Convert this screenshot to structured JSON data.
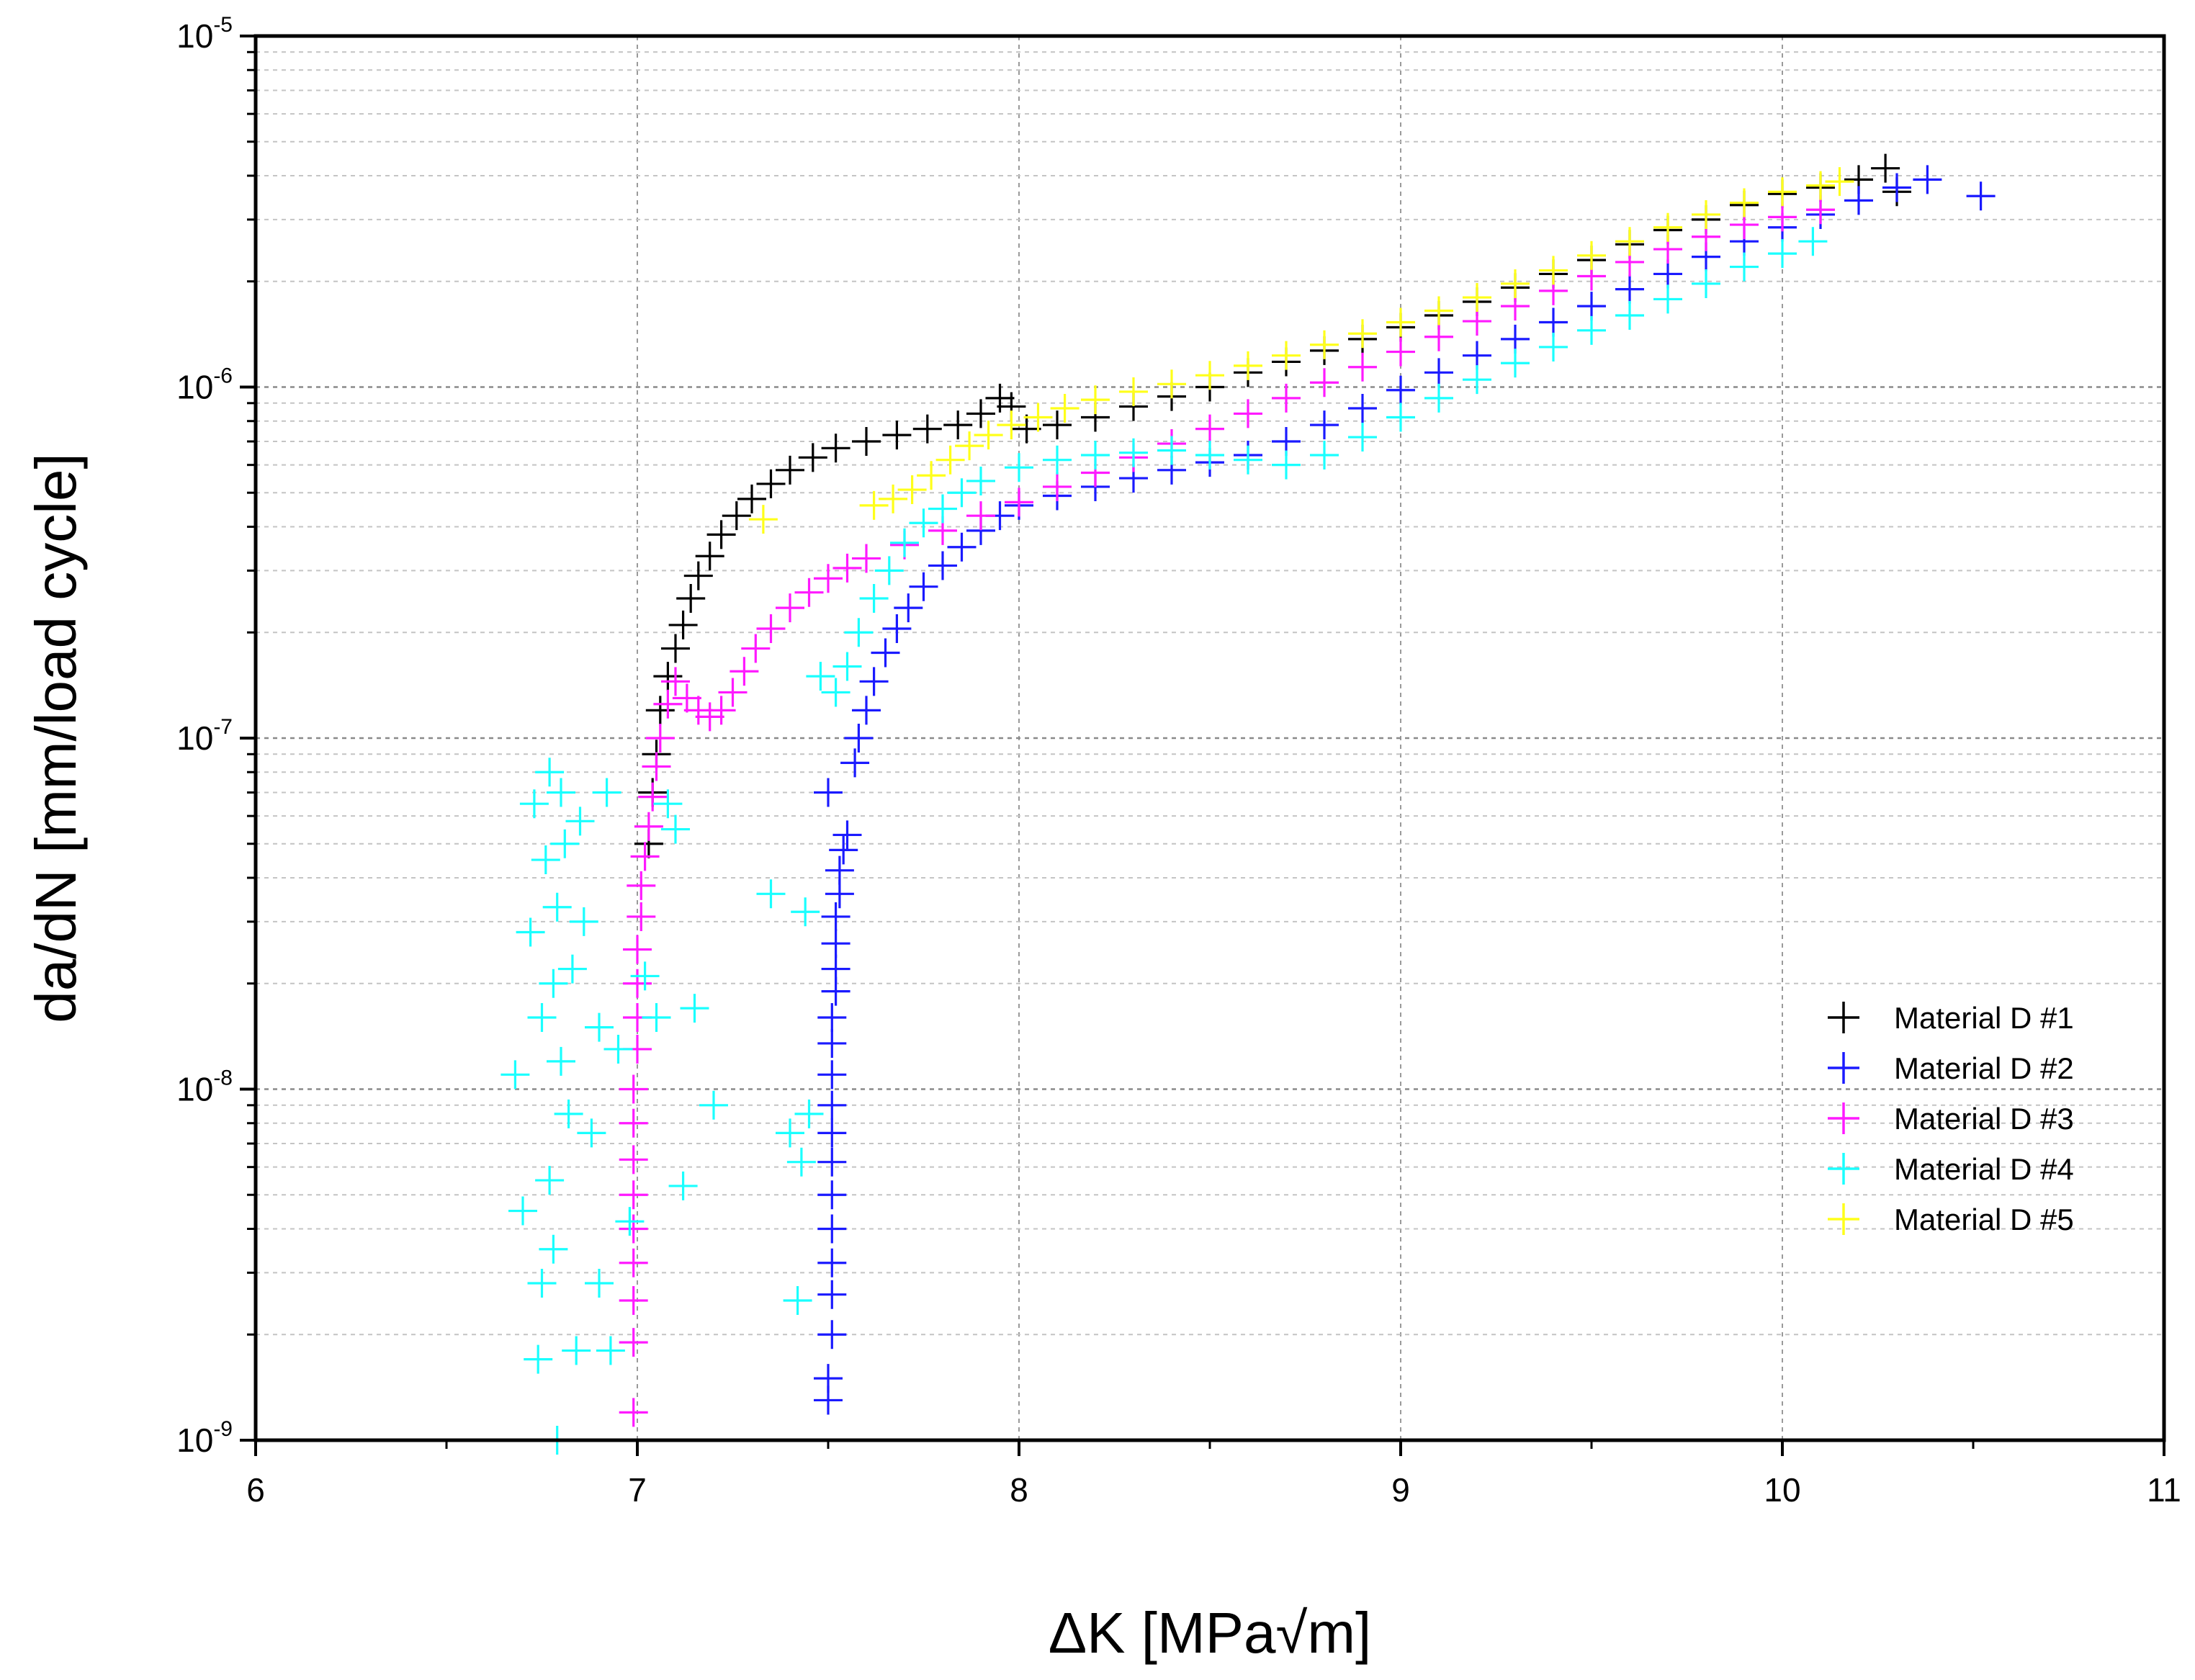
{
  "chart_data": {
    "type": "scatter",
    "marker": "plus",
    "title": "",
    "xlabel": "ΔK [MPa√m]",
    "ylabel": "da/dN [mm/load cycle]",
    "xscale": "linear",
    "yscale": "log",
    "xlim": [
      6,
      11
    ],
    "ylim": [
      1e-09,
      1e-05
    ],
    "x_ticks": [
      6,
      7,
      8,
      9,
      10,
      11
    ],
    "x_tick_labels": [
      "6",
      "7",
      "8",
      "9",
      "10",
      "11"
    ],
    "y_ticks": [
      1e-09,
      1e-08,
      1e-07,
      1e-06,
      1e-05
    ],
    "y_tick_labels": [
      {
        "base": "10",
        "exp": "-9"
      },
      {
        "base": "10",
        "exp": "-8"
      },
      {
        "base": "10",
        "exp": "-7"
      },
      {
        "base": "10",
        "exp": "-6"
      },
      {
        "base": "10",
        "exp": "-5"
      }
    ],
    "grid": true,
    "legend_position": "lower-right",
    "series": [
      {
        "name": "Material D #1",
        "color": "#000000",
        "points": [
          [
            7.03,
            5e-08
          ],
          [
            7.04,
            7e-08
          ],
          [
            7.05,
            9e-08
          ],
          [
            7.06,
            1.2e-07
          ],
          [
            7.08,
            1.5e-07
          ],
          [
            7.1,
            1.8e-07
          ],
          [
            7.12,
            2.1e-07
          ],
          [
            7.14,
            2.5e-07
          ],
          [
            7.16,
            2.9e-07
          ],
          [
            7.19,
            3.3e-07
          ],
          [
            7.22,
            3.8e-07
          ],
          [
            7.26,
            4.3e-07
          ],
          [
            7.3,
            4.8e-07
          ],
          [
            7.35,
            5.3e-07
          ],
          [
            7.4,
            5.8e-07
          ],
          [
            7.46,
            6.3e-07
          ],
          [
            7.52,
            6.7e-07
          ],
          [
            7.6,
            7e-07
          ],
          [
            7.68,
            7.3e-07
          ],
          [
            7.76,
            7.6e-07
          ],
          [
            7.84,
            7.8e-07
          ],
          [
            7.9,
            8.4e-07
          ],
          [
            7.95,
            9.3e-07
          ],
          [
            7.98,
            8.8e-07
          ],
          [
            8.02,
            7.6e-07
          ],
          [
            8.1,
            7.8e-07
          ],
          [
            8.2,
            8.2e-07
          ],
          [
            8.3,
            8.8e-07
          ],
          [
            8.4,
            9.4e-07
          ],
          [
            8.5,
            1e-06
          ],
          [
            8.6,
            1.1e-06
          ],
          [
            8.7,
            1.18e-06
          ],
          [
            8.8,
            1.27e-06
          ],
          [
            8.9,
            1.37e-06
          ],
          [
            9.0,
            1.48e-06
          ],
          [
            9.1,
            1.6e-06
          ],
          [
            9.2,
            1.75e-06
          ],
          [
            9.3,
            1.92e-06
          ],
          [
            9.4,
            2.1e-06
          ],
          [
            9.5,
            2.3e-06
          ],
          [
            9.6,
            2.55e-06
          ],
          [
            9.7,
            2.8e-06
          ],
          [
            9.8,
            3e-06
          ],
          [
            9.9,
            3.3e-06
          ],
          [
            10.0,
            3.55e-06
          ],
          [
            10.1,
            3.7e-06
          ],
          [
            10.2,
            3.9e-06
          ],
          [
            10.27,
            4.2e-06
          ],
          [
            10.3,
            3.6e-06
          ]
        ]
      },
      {
        "name": "Material D #2",
        "color": "#1a1aff",
        "points": [
          [
            7.5,
            1.3e-09
          ],
          [
            7.5,
            1.5e-09
          ],
          [
            7.51,
            2e-09
          ],
          [
            7.51,
            2.6e-09
          ],
          [
            7.51,
            3.2e-09
          ],
          [
            7.51,
            4e-09
          ],
          [
            7.51,
            5e-09
          ],
          [
            7.51,
            6.2e-09
          ],
          [
            7.51,
            7.5e-09
          ],
          [
            7.51,
            9e-09
          ],
          [
            7.51,
            1.1e-08
          ],
          [
            7.51,
            1.35e-08
          ],
          [
            7.51,
            1.6e-08
          ],
          [
            7.52,
            1.9e-08
          ],
          [
            7.52,
            2.2e-08
          ],
          [
            7.52,
            2.6e-08
          ],
          [
            7.52,
            3.1e-08
          ],
          [
            7.53,
            3.6e-08
          ],
          [
            7.53,
            4.2e-08
          ],
          [
            7.54,
            4.8e-08
          ],
          [
            7.55,
            5.3e-08
          ],
          [
            7.5,
            7e-08
          ],
          [
            7.57,
            8.5e-08
          ],
          [
            7.58,
            1e-07
          ],
          [
            7.6,
            1.2e-07
          ],
          [
            7.62,
            1.45e-07
          ],
          [
            7.65,
            1.75e-07
          ],
          [
            7.68,
            2.05e-07
          ],
          [
            7.71,
            2.35e-07
          ],
          [
            7.75,
            2.7e-07
          ],
          [
            7.8,
            3.1e-07
          ],
          [
            7.85,
            3.5e-07
          ],
          [
            7.9,
            3.9e-07
          ],
          [
            7.95,
            4.3e-07
          ],
          [
            8.0,
            4.6e-07
          ],
          [
            8.1,
            4.9e-07
          ],
          [
            8.2,
            5.2e-07
          ],
          [
            8.3,
            5.5e-07
          ],
          [
            8.4,
            5.8e-07
          ],
          [
            8.5,
            6.1e-07
          ],
          [
            8.6,
            6.4e-07
          ],
          [
            8.7,
            7e-07
          ],
          [
            8.8,
            7.8e-07
          ],
          [
            8.9,
            8.7e-07
          ],
          [
            9.0,
            9.8e-07
          ],
          [
            9.1,
            1.1e-06
          ],
          [
            9.2,
            1.23e-06
          ],
          [
            9.3,
            1.37e-06
          ],
          [
            9.4,
            1.53e-06
          ],
          [
            9.5,
            1.7e-06
          ],
          [
            9.6,
            1.9e-06
          ],
          [
            9.7,
            2.1e-06
          ],
          [
            9.8,
            2.35e-06
          ],
          [
            9.9,
            2.6e-06
          ],
          [
            10.0,
            2.85e-06
          ],
          [
            10.1,
            3.1e-06
          ],
          [
            10.2,
            3.4e-06
          ],
          [
            10.3,
            3.7e-06
          ],
          [
            10.38,
            3.9e-06
          ],
          [
            10.52,
            3.5e-06
          ]
        ]
      },
      {
        "name": "Material D #3",
        "color": "#ff1aff",
        "points": [
          [
            6.99,
            1.2e-09
          ],
          [
            6.99,
            1.9e-09
          ],
          [
            6.99,
            2.5e-09
          ],
          [
            6.99,
            3.2e-09
          ],
          [
            6.99,
            4e-09
          ],
          [
            6.99,
            5e-09
          ],
          [
            6.99,
            6.3e-09
          ],
          [
            6.99,
            8e-09
          ],
          [
            6.99,
            1e-08
          ],
          [
            7.0,
            1.3e-08
          ],
          [
            7.0,
            1.6e-08
          ],
          [
            7.0,
            2e-08
          ],
          [
            7.0,
            2.5e-08
          ],
          [
            7.01,
            3.1e-08
          ],
          [
            7.01,
            3.8e-08
          ],
          [
            7.02,
            4.6e-08
          ],
          [
            7.03,
            5.6e-08
          ],
          [
            7.04,
            6.8e-08
          ],
          [
            7.05,
            8.3e-08
          ],
          [
            7.06,
            1e-07
          ],
          [
            7.08,
            1.25e-07
          ],
          [
            7.1,
            1.45e-07
          ],
          [
            7.13,
            1.3e-07
          ],
          [
            7.16,
            1.2e-07
          ],
          [
            7.19,
            1.15e-07
          ],
          [
            7.22,
            1.2e-07
          ],
          [
            7.25,
            1.35e-07
          ],
          [
            7.28,
            1.55e-07
          ],
          [
            7.31,
            1.8e-07
          ],
          [
            7.35,
            2.05e-07
          ],
          [
            7.4,
            2.35e-07
          ],
          [
            7.45,
            2.6e-07
          ],
          [
            7.5,
            2.85e-07
          ],
          [
            7.55,
            3.05e-07
          ],
          [
            7.6,
            3.25e-07
          ],
          [
            7.7,
            3.55e-07
          ],
          [
            7.8,
            3.9e-07
          ],
          [
            7.9,
            4.3e-07
          ],
          [
            8.0,
            4.7e-07
          ],
          [
            8.1,
            5.2e-07
          ],
          [
            8.2,
            5.7e-07
          ],
          [
            8.3,
            6.3e-07
          ],
          [
            8.4,
            6.9e-07
          ],
          [
            8.5,
            7.6e-07
          ],
          [
            8.6,
            8.4e-07
          ],
          [
            8.7,
            9.3e-07
          ],
          [
            8.8,
            1.03e-06
          ],
          [
            8.9,
            1.14e-06
          ],
          [
            9.0,
            1.26e-06
          ],
          [
            9.1,
            1.39e-06
          ],
          [
            9.2,
            1.54e-06
          ],
          [
            9.3,
            1.7e-06
          ],
          [
            9.4,
            1.88e-06
          ],
          [
            9.5,
            2.07e-06
          ],
          [
            9.6,
            2.27e-06
          ],
          [
            9.7,
            2.47e-06
          ],
          [
            9.8,
            2.68e-06
          ],
          [
            9.9,
            2.9e-06
          ],
          [
            10.0,
            3.05e-06
          ],
          [
            10.1,
            3.2e-06
          ]
        ]
      },
      {
        "name": "Material D #4",
        "color": "#1affff",
        "points": [
          [
            6.7,
            4.5e-09
          ],
          [
            6.68,
            1.1e-08
          ],
          [
            6.72,
            2.8e-08
          ],
          [
            6.73,
            6.5e-08
          ],
          [
            6.74,
            1.7e-09
          ],
          [
            6.75,
            2.8e-09
          ],
          [
            6.75,
            1.6e-08
          ],
          [
            6.76,
            4.5e-08
          ],
          [
            6.77,
            8e-08
          ],
          [
            6.77,
            5.5e-09
          ],
          [
            6.78,
            2e-08
          ],
          [
            6.78,
            3.5e-09
          ],
          [
            6.79,
            1e-09
          ],
          [
            6.79,
            3.3e-08
          ],
          [
            6.8,
            1.2e-08
          ],
          [
            6.8,
            7e-08
          ],
          [
            6.81,
            5e-08
          ],
          [
            6.82,
            8.5e-09
          ],
          [
            6.83,
            2.2e-08
          ],
          [
            6.84,
            1.8e-09
          ],
          [
            6.85,
            5.8e-08
          ],
          [
            6.86,
            3e-08
          ],
          [
            6.88,
            7.5e-09
          ],
          [
            6.9,
            1.5e-08
          ],
          [
            6.9,
            2.8e-09
          ],
          [
            6.92,
            7e-08
          ],
          [
            6.93,
            1.8e-09
          ],
          [
            6.95,
            1.3e-08
          ],
          [
            6.98,
            4.2e-09
          ],
          [
            7.02,
            2.1e-08
          ],
          [
            7.05,
            1.6e-08
          ],
          [
            7.08,
            6.5e-08
          ],
          [
            7.1,
            5.5e-08
          ],
          [
            7.12,
            5.3e-09
          ],
          [
            7.15,
            1.7e-08
          ],
          [
            7.2,
            9e-09
          ],
          [
            7.35,
            3.6e-08
          ],
          [
            7.4,
            7.5e-09
          ],
          [
            7.42,
            2.5e-09
          ],
          [
            7.43,
            6.2e-09
          ],
          [
            7.44,
            3.2e-08
          ],
          [
            7.45,
            8.5e-09
          ],
          [
            7.48,
            1.5e-07
          ],
          [
            7.52,
            1.35e-07
          ],
          [
            7.55,
            1.6e-07
          ],
          [
            7.58,
            2e-07
          ],
          [
            7.62,
            2.5e-07
          ],
          [
            7.66,
            3e-07
          ],
          [
            7.7,
            3.6e-07
          ],
          [
            7.75,
            4.1e-07
          ],
          [
            7.8,
            4.5e-07
          ],
          [
            7.85,
            5e-07
          ],
          [
            7.9,
            5.4e-07
          ],
          [
            8.0,
            5.9e-07
          ],
          [
            8.1,
            6.2e-07
          ],
          [
            8.2,
            6.4e-07
          ],
          [
            8.3,
            6.5e-07
          ],
          [
            8.4,
            6.6e-07
          ],
          [
            8.5,
            6.4e-07
          ],
          [
            8.6,
            6.2e-07
          ],
          [
            8.7,
            6e-07
          ],
          [
            8.8,
            6.4e-07
          ],
          [
            8.9,
            7.2e-07
          ],
          [
            9.0,
            8.2e-07
          ],
          [
            9.1,
            9.3e-07
          ],
          [
            9.2,
            1.05e-06
          ],
          [
            9.3,
            1.17e-06
          ],
          [
            9.4,
            1.3e-06
          ],
          [
            9.5,
            1.45e-06
          ],
          [
            9.6,
            1.6e-06
          ],
          [
            9.7,
            1.78e-06
          ],
          [
            9.8,
            1.97e-06
          ],
          [
            9.9,
            2.2e-06
          ],
          [
            10.0,
            2.4e-06
          ],
          [
            10.08,
            2.6e-06
          ]
        ]
      },
      {
        "name": "Material D #5",
        "color": "#ffff1a",
        "points": [
          [
            7.33,
            4.2e-07
          ],
          [
            7.62,
            4.6e-07
          ],
          [
            7.67,
            4.8e-07
          ],
          [
            7.72,
            5.1e-07
          ],
          [
            7.77,
            5.6e-07
          ],
          [
            7.82,
            6.2e-07
          ],
          [
            7.87,
            6.8e-07
          ],
          [
            7.92,
            7.3e-07
          ],
          [
            7.98,
            7.8e-07
          ],
          [
            8.05,
            8.2e-07
          ],
          [
            8.12,
            8.7e-07
          ],
          [
            8.2,
            9.2e-07
          ],
          [
            8.3,
            9.7e-07
          ],
          [
            8.4,
            1.02e-06
          ],
          [
            8.5,
            1.08e-06
          ],
          [
            8.6,
            1.15e-06
          ],
          [
            8.7,
            1.23e-06
          ],
          [
            8.8,
            1.32e-06
          ],
          [
            8.9,
            1.42e-06
          ],
          [
            9.0,
            1.53e-06
          ],
          [
            9.1,
            1.65e-06
          ],
          [
            9.2,
            1.8e-06
          ],
          [
            9.3,
            1.97e-06
          ],
          [
            9.4,
            2.15e-06
          ],
          [
            9.5,
            2.37e-06
          ],
          [
            9.6,
            2.6e-06
          ],
          [
            9.7,
            2.85e-06
          ],
          [
            9.8,
            3.1e-06
          ],
          [
            9.9,
            3.35e-06
          ],
          [
            10.0,
            3.6e-06
          ],
          [
            10.1,
            3.75e-06
          ],
          [
            10.15,
            3.85e-06
          ]
        ]
      }
    ]
  }
}
